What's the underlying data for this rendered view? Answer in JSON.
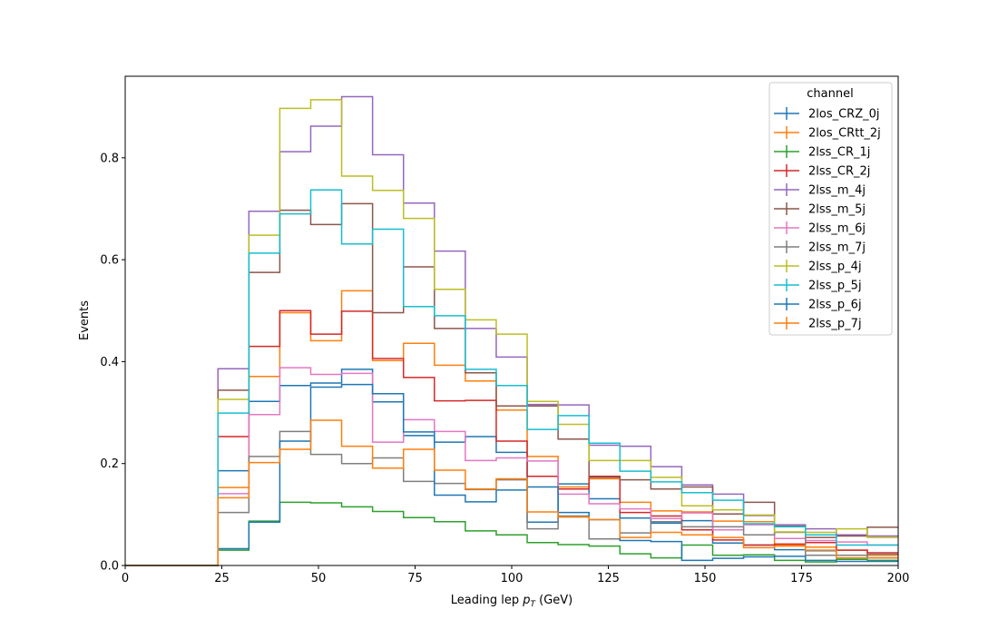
{
  "chart_data": {
    "type": "histogram",
    "xlabel_main": "Leading lep ",
    "xlabel_var": "p",
    "xlabel_sub": "T",
    "xlabel_unit": " (GeV)",
    "ylabel": "Events",
    "xlim": [
      0,
      200
    ],
    "ylim": [
      0,
      0.96
    ],
    "xticks": [
      0,
      25,
      50,
      75,
      100,
      125,
      150,
      175,
      200
    ],
    "yticks": [
      0.0,
      0.2,
      0.4,
      0.6,
      0.8
    ],
    "ytick_labels": [
      "0.0",
      "0.2",
      "0.4",
      "0.6",
      "0.8"
    ],
    "grid": false,
    "legend_title": "channel",
    "legend_position": "top-right",
    "bin_edges": [
      0,
      8,
      16,
      24,
      32,
      40,
      48,
      56,
      64,
      72,
      80,
      88,
      96,
      104,
      112,
      120,
      128,
      136,
      144,
      152,
      160,
      168,
      176,
      184,
      192,
      200
    ],
    "series": [
      {
        "name": "2los_CRZ_0j",
        "color": "#1f77b4",
        "values": [
          0,
          0,
          0,
          0.186,
          0.322,
          0.353,
          0.358,
          0.385,
          0.321,
          0.255,
          0.242,
          0.253,
          0.222,
          0.085,
          0.16,
          0.131,
          0.093,
          0.083,
          0.088,
          0.044,
          0.04,
          0.031,
          0.029,
          0.02,
          0.015
        ]
      },
      {
        "name": "2los_CRtt_2j",
        "color": "#ff7f0e",
        "values": [
          0,
          0,
          0,
          0.153,
          0.371,
          0.496,
          0.441,
          0.539,
          0.402,
          0.436,
          0.393,
          0.362,
          0.305,
          0.214,
          0.154,
          0.17,
          0.124,
          0.107,
          0.105,
          0.087,
          0.086,
          0.04,
          0.036,
          0.03,
          0.02
        ]
      },
      {
        "name": "2lss_CR_1j",
        "color": "#2ca02c",
        "values": [
          0,
          0,
          0,
          0.03,
          0.087,
          0.124,
          0.123,
          0.115,
          0.106,
          0.094,
          0.086,
          0.068,
          0.06,
          0.045,
          0.041,
          0.038,
          0.023,
          0.015,
          0.04,
          0.02,
          0.021,
          0.01,
          0.007,
          0.012,
          0.01
        ]
      },
      {
        "name": "2lss_CR_2j",
        "color": "#d62728",
        "values": [
          0,
          0,
          0,
          0.253,
          0.43,
          0.5,
          0.454,
          0.499,
          0.406,
          0.369,
          0.323,
          0.324,
          0.244,
          0.175,
          0.15,
          0.175,
          0.104,
          0.097,
          0.07,
          0.05,
          0.04,
          0.042,
          0.045,
          0.03,
          0.025
        ]
      },
      {
        "name": "2lss_m_4j",
        "color": "#9467bd",
        "values": [
          0,
          0,
          0,
          0.386,
          0.695,
          0.812,
          0.862,
          0.92,
          0.806,
          0.711,
          0.617,
          0.465,
          0.409,
          0.316,
          0.315,
          0.236,
          0.234,
          0.194,
          0.158,
          0.14,
          0.098,
          0.08,
          0.072,
          0.06,
          0.058
        ]
      },
      {
        "name": "2lss_m_5j",
        "color": "#8c564b",
        "values": [
          0,
          0,
          0,
          0.344,
          0.575,
          0.697,
          0.669,
          0.71,
          0.496,
          0.586,
          0.465,
          0.378,
          0.313,
          0.313,
          0.248,
          0.173,
          0.168,
          0.15,
          0.154,
          0.101,
          0.124,
          0.077,
          0.055,
          0.058,
          0.075
        ]
      },
      {
        "name": "2lss_m_6j",
        "color": "#e377c2",
        "values": [
          0,
          0,
          0,
          0.141,
          0.296,
          0.388,
          0.375,
          0.377,
          0.242,
          0.286,
          0.263,
          0.206,
          0.211,
          0.205,
          0.14,
          0.121,
          0.111,
          0.092,
          0.103,
          0.07,
          0.08,
          0.053,
          0.049,
          0.046,
          0.04
        ]
      },
      {
        "name": "2lss_m_7j",
        "color": "#7f7f7f",
        "values": [
          0,
          0,
          0,
          0.104,
          0.214,
          0.263,
          0.218,
          0.2,
          0.211,
          0.165,
          0.161,
          0.149,
          0.168,
          0.072,
          0.097,
          0.052,
          0.064,
          0.086,
          0.076,
          0.076,
          0.06,
          0.065,
          0.02,
          0.02,
          0.022
        ]
      },
      {
        "name": "2lss_p_4j",
        "color": "#bcbd22",
        "values": [
          0,
          0,
          0,
          0.326,
          0.648,
          0.897,
          0.914,
          0.764,
          0.736,
          0.681,
          0.542,
          0.482,
          0.454,
          0.322,
          0.277,
          0.206,
          0.206,
          0.173,
          0.117,
          0.109,
          0.099,
          0.066,
          0.065,
          0.072,
          0.055
        ]
      },
      {
        "name": "2lss_p_5j",
        "color": "#17becf",
        "values": [
          0,
          0,
          0,
          0.299,
          0.613,
          0.69,
          0.737,
          0.631,
          0.66,
          0.508,
          0.49,
          0.385,
          0.353,
          0.267,
          0.294,
          0.24,
          0.185,
          0.164,
          0.143,
          0.128,
          0.082,
          0.076,
          0.06,
          0.04,
          0.04
        ]
      },
      {
        "name": "2lss_p_6j",
        "color": "#1f77b4",
        "values": [
          0,
          0,
          0,
          0.033,
          0.085,
          0.244,
          0.35,
          0.355,
          0.337,
          0.262,
          0.138,
          0.125,
          0.148,
          0.154,
          0.104,
          0.09,
          0.049,
          0.047,
          0.01,
          0.014,
          0.017,
          0.018,
          0.01,
          0.008,
          0.008
        ]
      },
      {
        "name": "2lss_p_7j",
        "color": "#ff7f0e",
        "values": [
          0,
          0,
          0,
          0.133,
          0.202,
          0.228,
          0.285,
          0.234,
          0.191,
          0.228,
          0.187,
          0.15,
          0.17,
          0.105,
          0.095,
          0.09,
          0.055,
          0.065,
          0.06,
          0.055,
          0.035,
          0.038,
          0.03,
          0.015,
          0.015
        ]
      }
    ]
  }
}
